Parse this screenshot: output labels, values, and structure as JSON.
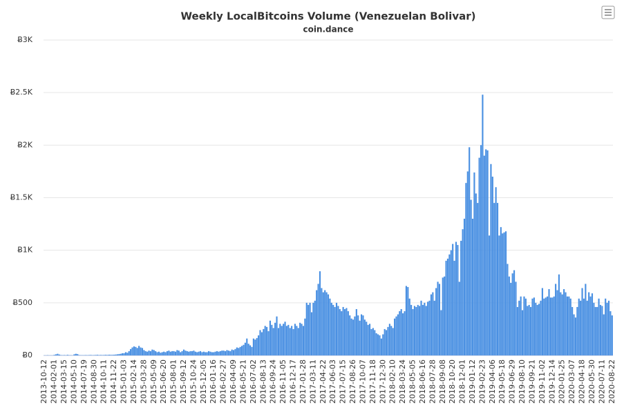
{
  "chart_data": {
    "type": "bar",
    "title": "Weekly LocalBitcoins Volume (Venezuelan Bolivar)",
    "subtitle": "coin.dance",
    "color": "#4a90e2",
    "grid": true,
    "ylim": [
      0,
      3000
    ],
    "yticks": [
      {
        "value": 0,
        "label": "Ƀ0"
      },
      {
        "value": 500,
        "label": "Ƀ500"
      },
      {
        "value": 1000,
        "label": "Ƀ1K"
      },
      {
        "value": 1500,
        "label": "Ƀ1.5K"
      },
      {
        "value": 2000,
        "label": "Ƀ2K"
      },
      {
        "value": 2500,
        "label": "Ƀ2.5K"
      },
      {
        "value": 3000,
        "label": "Ƀ3K"
      }
    ],
    "categories": [
      "2013-10-12",
      null,
      null,
      null,
      null,
      null,
      "2014-02-01",
      null,
      null,
      null,
      null,
      null,
      "2014-03-15",
      null,
      null,
      null,
      null,
      null,
      "2014-05-10",
      null,
      null,
      null,
      null,
      null,
      "2014-07-19",
      null,
      null,
      null,
      null,
      null,
      "2014-08-30",
      null,
      null,
      null,
      null,
      null,
      "2014-10-11",
      null,
      null,
      null,
      null,
      null,
      "2014-11-22",
      null,
      null,
      null,
      null,
      null,
      "2015-01-03",
      null,
      null,
      null,
      null,
      null,
      "2015-02-14",
      null,
      null,
      null,
      null,
      null,
      "2015-03-28",
      null,
      null,
      null,
      null,
      null,
      "2015-05-09",
      null,
      null,
      null,
      null,
      null,
      "2015-06-20",
      null,
      null,
      null,
      null,
      null,
      "2015-08-01",
      null,
      null,
      null,
      null,
      null,
      "2015-09-12",
      null,
      null,
      null,
      null,
      null,
      "2015-10-24",
      null,
      null,
      null,
      null,
      null,
      "2015-12-05",
      null,
      null,
      null,
      null,
      null,
      "2016-01-16",
      null,
      null,
      null,
      null,
      null,
      "2016-02-27",
      null,
      null,
      null,
      null,
      null,
      "2016-04-09",
      null,
      null,
      null,
      null,
      null,
      "2016-05-21",
      null,
      null,
      null,
      null,
      null,
      "2016-07-02",
      null,
      null,
      null,
      null,
      null,
      "2016-08-13",
      null,
      null,
      null,
      null,
      null,
      "2016-09-24",
      null,
      null,
      null,
      null,
      null,
      "2016-11-05",
      null,
      null,
      null,
      null,
      null,
      "2016-12-17",
      null,
      null,
      null,
      null,
      null,
      "2017-01-28",
      null,
      null,
      null,
      null,
      null,
      "2017-03-11",
      null,
      null,
      null,
      null,
      null,
      "2017-04-22",
      null,
      null,
      null,
      null,
      null,
      "2017-06-03",
      null,
      null,
      null,
      null,
      null,
      "2017-07-15",
      null,
      null,
      null,
      null,
      null,
      "2017-08-26",
      null,
      null,
      null,
      null,
      null,
      "2017-10-07",
      null,
      null,
      null,
      null,
      null,
      "2017-11-18",
      null,
      null,
      null,
      null,
      null,
      "2017-12-30",
      null,
      null,
      null,
      null,
      null,
      "2018-02-10",
      null,
      null,
      null,
      null,
      null,
      "2018-03-24",
      null,
      null,
      null,
      null,
      null,
      "2018-05-05",
      null,
      null,
      null,
      null,
      null,
      "2018-06-16",
      null,
      null,
      null,
      null,
      null,
      "2018-07-28",
      null,
      null,
      null,
      null,
      null,
      "2018-09-08",
      null,
      null,
      null,
      null,
      null,
      "2018-10-20",
      null,
      null,
      null,
      null,
      null,
      "2018-12-01",
      null,
      null,
      null,
      null,
      null,
      "2019-01-12",
      null,
      null,
      null,
      null,
      null,
      "2019-02-23",
      null,
      null,
      null,
      null,
      null,
      "2019-04-06",
      null,
      null,
      null,
      null,
      null,
      "2019-05-18",
      null,
      null,
      null,
      null,
      null,
      "2019-06-29",
      null,
      null,
      null,
      null,
      null,
      "2019-08-10",
      null,
      null,
      null,
      null,
      null,
      "2019-09-21",
      null,
      null,
      null,
      null,
      null,
      "2019-11-02",
      null,
      null,
      null,
      null,
      null,
      "2019-12-14",
      null,
      null,
      null,
      null,
      null,
      "2020-01-25",
      null,
      null,
      null,
      null,
      null,
      "2020-03-07",
      null,
      null,
      null,
      null,
      null,
      "2020-04-18",
      null,
      null,
      null,
      null,
      null,
      "2020-05-30",
      null,
      null,
      null,
      null,
      null,
      "2020-07-11",
      null,
      null,
      null,
      null,
      null,
      "2020-08-22"
    ],
    "values": [
      1,
      1,
      2,
      1,
      1,
      1,
      5,
      10,
      15,
      8,
      3,
      2,
      3,
      2,
      5,
      2,
      2,
      1,
      10,
      15,
      12,
      3,
      2,
      2,
      2,
      3,
      2,
      3,
      4,
      2,
      3,
      4,
      5,
      3,
      4,
      3,
      4,
      5,
      4,
      6,
      5,
      5,
      6,
      8,
      10,
      12,
      15,
      20,
      20,
      30,
      25,
      40,
      60,
      75,
      85,
      80,
      70,
      90,
      75,
      70,
      50,
      40,
      35,
      45,
      40,
      55,
      50,
      40,
      30,
      35,
      25,
      30,
      35,
      30,
      40,
      45,
      35,
      40,
      40,
      35,
      50,
      45,
      30,
      40,
      55,
      45,
      40,
      35,
      40,
      40,
      45,
      35,
      30,
      35,
      40,
      30,
      35,
      30,
      30,
      40,
      35,
      30,
      30,
      35,
      40,
      35,
      40,
      45,
      45,
      40,
      50,
      45,
      40,
      55,
      50,
      60,
      75,
      70,
      80,
      90,
      100,
      120,
      160,
      110,
      95,
      80,
      160,
      150,
      165,
      190,
      240,
      220,
      250,
      280,
      270,
      230,
      330,
      290,
      260,
      310,
      370,
      260,
      300,
      280,
      300,
      320,
      280,
      290,
      260,
      280,
      250,
      300,
      280,
      260,
      310,
      300,
      280,
      350,
      500,
      480,
      500,
      410,
      500,
      520,
      620,
      680,
      800,
      640,
      600,
      620,
      600,
      580,
      540,
      500,
      480,
      460,
      500,
      470,
      440,
      420,
      460,
      440,
      450,
      420,
      380,
      350,
      340,
      370,
      440,
      380,
      330,
      390,
      380,
      340,
      320,
      290,
      300,
      250,
      260,
      240,
      210,
      200,
      190,
      160,
      200,
      250,
      240,
      270,
      300,
      280,
      260,
      350,
      370,
      390,
      420,
      440,
      400,
      420,
      660,
      650,
      540,
      480,
      440,
      470,
      460,
      480,
      470,
      520,
      480,
      500,
      470,
      510,
      520,
      580,
      600,
      520,
      640,
      700,
      680,
      430,
      740,
      750,
      900,
      920,
      960,
      1000,
      1060,
      900,
      1080,
      1050,
      700,
      1090,
      1200,
      1300,
      1640,
      1750,
      1980,
      1480,
      1300,
      1740,
      1540,
      1450,
      1880,
      2000,
      2480,
      1900,
      1960,
      1950,
      1140,
      1820,
      1700,
      1450,
      1600,
      1450,
      1140,
      1220,
      1160,
      1170,
      1180,
      870,
      750,
      690,
      780,
      810,
      700,
      460,
      520,
      560,
      430,
      560,
      540,
      470,
      480,
      460,
      540,
      550,
      500,
      480,
      490,
      520,
      640,
      540,
      550,
      560,
      630,
      550,
      550,
      560,
      680,
      620,
      770,
      600,
      580,
      630,
      600,
      560,
      560,
      540,
      460,
      390,
      360,
      460,
      540,
      520,
      640,
      540,
      680,
      520,
      600,
      560,
      590,
      500,
      460,
      460,
      540,
      480,
      470,
      390,
      540,
      500,
      520,
      420,
      380
    ]
  }
}
